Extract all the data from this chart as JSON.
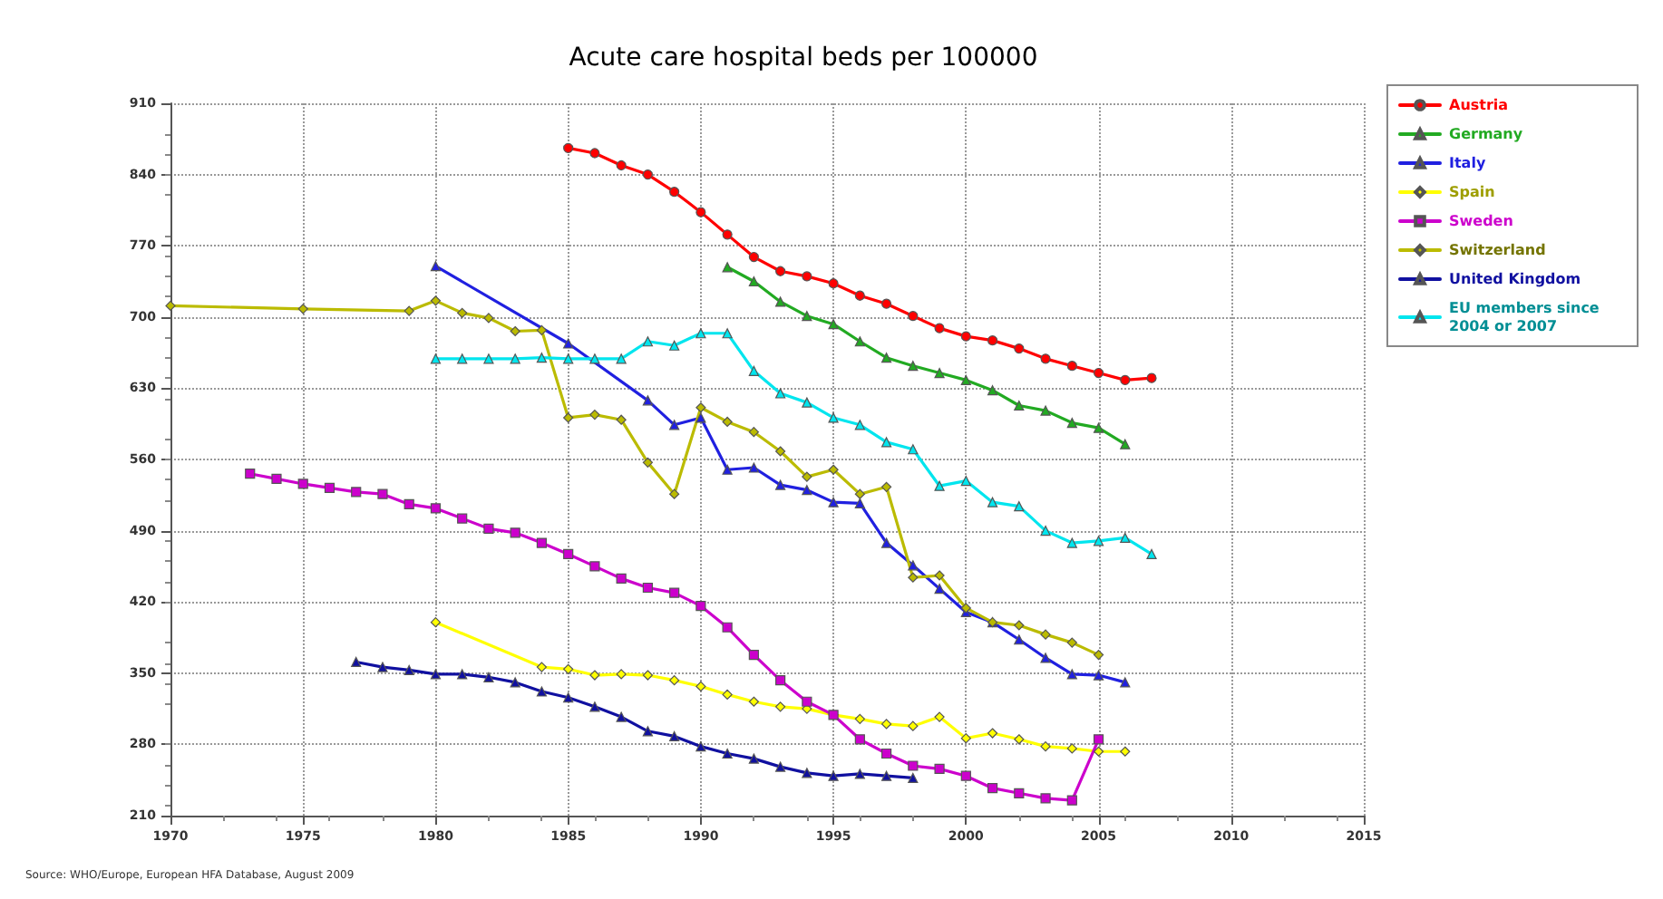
{
  "chart_data": {
    "type": "line",
    "title": "Acute care hospital beds per 100000",
    "xlim": [
      1970,
      2015
    ],
    "xticks": [
      1970,
      1975,
      1980,
      1985,
      1990,
      1995,
      2000,
      2005,
      2010,
      2015
    ],
    "ylim": [
      210,
      910
    ],
    "yticks": [
      210,
      280,
      350,
      420,
      490,
      560,
      630,
      700,
      770,
      840,
      910
    ],
    "grid": true,
    "legend": "right",
    "line_style": "solid",
    "annotations": [
      "Source: WHO/Europe, European HFA Database, August 2009"
    ],
    "series": [
      {
        "name": "Austria",
        "color": "#ff0000",
        "marker": "circle",
        "x": [
          1985,
          1986,
          1987,
          1988,
          1989,
          1990,
          1991,
          1992,
          1993,
          1994,
          1995,
          1996,
          1997,
          1998,
          1999,
          2000,
          2001,
          2002,
          2003,
          2004,
          2005,
          2006,
          2007
        ],
        "values": [
          866,
          861,
          849,
          840,
          823,
          803,
          781,
          759,
          745,
          740,
          733,
          721,
          713,
          701,
          689,
          681,
          677,
          669,
          659,
          652,
          645,
          638,
          640
        ]
      },
      {
        "name": "Germany",
        "color": "#22aa22",
        "marker": "triangle",
        "x": [
          1991,
          1992,
          1993,
          1994,
          1995,
          1996,
          1997,
          1998,
          1999,
          2000,
          2001,
          2002,
          2003,
          2004,
          2005,
          2006
        ],
        "values": [
          749,
          735,
          715,
          701,
          693,
          676,
          660,
          652,
          645,
          638,
          628,
          613,
          608,
          596,
          591,
          575
        ]
      },
      {
        "name": "Italy",
        "color": "#2020e0",
        "marker": "triangle",
        "x": [
          1980,
          1985,
          1988,
          1989,
          1990,
          1991,
          1992,
          1993,
          1994,
          1995,
          1996,
          1997,
          1998,
          1999,
          2000,
          2001,
          2002,
          2003,
          2004,
          2005,
          2006
        ],
        "values": [
          750,
          674,
          618,
          594,
          601,
          550,
          552,
          535,
          530,
          518,
          517,
          478,
          456,
          433,
          410,
          400,
          383,
          365,
          349,
          348,
          341
        ]
      },
      {
        "name": "Spain",
        "color": "#ffff00",
        "marker": "diamond",
        "x": [
          1980,
          1984,
          1985,
          1986,
          1987,
          1988,
          1989,
          1990,
          1991,
          1992,
          1993,
          1994,
          1995,
          1996,
          1997,
          1998,
          1999,
          2000,
          2001,
          2002,
          2003,
          2004,
          2005,
          2006
        ],
        "values": [
          400,
          356,
          354,
          348,
          349,
          348,
          343,
          337,
          329,
          322,
          317,
          315,
          309,
          305,
          300,
          298,
          307,
          286,
          291,
          285,
          278,
          276,
          273,
          273
        ]
      },
      {
        "name": "Sweden",
        "color": "#cc00cc",
        "marker": "square",
        "x": [
          1973,
          1974,
          1975,
          1976,
          1977,
          1978,
          1979,
          1980,
          1981,
          1982,
          1983,
          1984,
          1985,
          1986,
          1987,
          1988,
          1989,
          1990,
          1991,
          1992,
          1993,
          1994,
          1995,
          1996,
          1997,
          1998,
          1999,
          2000,
          2001,
          2002,
          2003,
          2004,
          2005
        ],
        "values": [
          546,
          541,
          536,
          532,
          528,
          526,
          516,
          512,
          502,
          492,
          488,
          478,
          467,
          455,
          443,
          434,
          429,
          416,
          395,
          368,
          343,
          322,
          309,
          285,
          271,
          259,
          256,
          249,
          237,
          232,
          227,
          225,
          285
        ]
      },
      {
        "name": "Switzerland",
        "color": "#bbbb00",
        "marker": "diamond",
        "x": [
          1970,
          1975,
          1979,
          1980,
          1981,
          1982,
          1983,
          1984,
          1985,
          1986,
          1987,
          1988,
          1989,
          1990,
          1991,
          1992,
          1993,
          1994,
          1995,
          1996,
          1997,
          1998,
          1999,
          2000,
          2001,
          2002,
          2003,
          2004,
          2005
        ],
        "values": [
          711,
          708,
          706,
          716,
          704,
          699,
          686,
          687,
          601,
          604,
          599,
          557,
          526,
          611,
          597,
          587,
          568,
          543,
          550,
          526,
          533,
          444,
          446,
          414,
          400,
          397,
          388,
          380,
          368
        ]
      },
      {
        "name": "United Kingdom",
        "color": "#1010a0",
        "marker": "triangle",
        "x": [
          1977,
          1978,
          1979,
          1980,
          1981,
          1982,
          1983,
          1984,
          1985,
          1986,
          1987,
          1988,
          1989,
          1990,
          1991,
          1992,
          1993,
          1994,
          1995,
          1996,
          1997,
          1998
        ],
        "values": [
          361,
          356,
          353,
          349,
          349,
          346,
          341,
          332,
          326,
          317,
          307,
          293,
          288,
          278,
          271,
          266,
          258,
          252,
          249,
          251,
          249,
          247
        ]
      },
      {
        "name": "EU members since 2004 or 2007",
        "color": "#00e5ee",
        "marker": "triangle",
        "x": [
          1980,
          1981,
          1982,
          1983,
          1984,
          1985,
          1986,
          1987,
          1988,
          1989,
          1990,
          1991,
          1992,
          1993,
          1994,
          1995,
          1996,
          1997,
          1998,
          1999,
          2000,
          2001,
          2002,
          2003,
          2004,
          2005,
          2006,
          2007
        ],
        "values": [
          659,
          659,
          659,
          659,
          660,
          659,
          659,
          659,
          676,
          672,
          684,
          684,
          647,
          625,
          616,
          601,
          594,
          577,
          570,
          534,
          539,
          518,
          514,
          490,
          478,
          480,
          483,
          467
        ]
      }
    ]
  }
}
